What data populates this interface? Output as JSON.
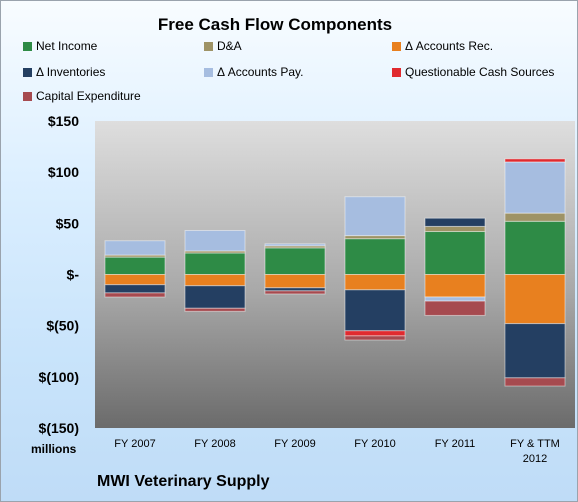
{
  "chart_data": {
    "type": "bar",
    "stacked": true,
    "title": "Free Cash Flow Components",
    "unit_label": "millions",
    "company": "MWI Veterinary Supply",
    "categories": [
      "FY 2007",
      "FY 2008",
      "FY 2009",
      "FY 2010",
      "FY 2011",
      "FY & TTM 2012"
    ],
    "ylim": [
      -150,
      150
    ],
    "yticks": [
      150,
      100,
      50,
      0,
      -50,
      -100,
      -150
    ],
    "ytick_labels": [
      "$150",
      "$100",
      "$50",
      "$-",
      "$(50)",
      "$(100)",
      "$(150)"
    ],
    "grid": false,
    "legend_position": "top",
    "series": [
      {
        "name": "Net Income",
        "color": "#2e8b46",
        "values": [
          17,
          21,
          26,
          35,
          42,
          52
        ]
      },
      {
        "name": "D&A",
        "color": "#9e9366",
        "values": [
          2,
          2,
          2,
          3,
          5,
          8
        ]
      },
      {
        "name": "Δ Accounts Rec.",
        "color": "#e8801f",
        "values": [
          -10,
          -11,
          -13,
          -15,
          -22,
          -48
        ]
      },
      {
        "name": "Δ Inventories",
        "color": "#243f62",
        "values": [
          -8,
          -22,
          -3,
          -40,
          8,
          -53
        ]
      },
      {
        "name": "Δ Accounts Pay.",
        "color": "#a6bde0",
        "values": [
          14,
          20,
          2,
          38,
          -4,
          50
        ]
      },
      {
        "name": "Questionable Cash Sources",
        "color": "#e02a2f",
        "values": [
          0,
          0,
          0,
          -5,
          0,
          3
        ]
      },
      {
        "name": "Capital Expenditure",
        "color": "#a64a4f",
        "values": [
          -4,
          -3,
          -3,
          -4,
          -14,
          -8
        ]
      }
    ]
  }
}
